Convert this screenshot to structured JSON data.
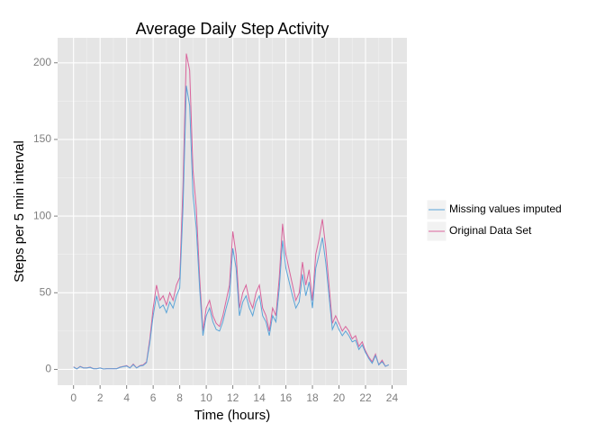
{
  "chart_data": {
    "type": "line",
    "title": "Average Daily Step Activity",
    "x_label": "Time (hours)",
    "y_label": "Steps per 5 min interval",
    "x": [
      0,
      0.25,
      0.5,
      0.75,
      1,
      1.25,
      1.5,
      1.75,
      2,
      2.25,
      2.5,
      2.75,
      3,
      3.25,
      3.5,
      3.75,
      4,
      4.25,
      4.5,
      4.75,
      5,
      5.25,
      5.5,
      5.75,
      6,
      6.25,
      6.5,
      6.75,
      7,
      7.25,
      7.5,
      7.75,
      8,
      8.25,
      8.5,
      8.75,
      9,
      9.25,
      9.5,
      9.75,
      10,
      10.25,
      10.5,
      10.75,
      11,
      11.25,
      11.5,
      11.75,
      12,
      12.25,
      12.5,
      12.75,
      13,
      13.25,
      13.5,
      13.75,
      14,
      14.25,
      14.5,
      14.75,
      15,
      15.25,
      15.5,
      15.75,
      16,
      16.25,
      16.5,
      16.75,
      17,
      17.25,
      17.5,
      17.75,
      18,
      18.25,
      18.5,
      18.75,
      19,
      19.25,
      19.5,
      19.75,
      20,
      20.25,
      20.5,
      20.75,
      21,
      21.25,
      21.5,
      21.75,
      22,
      22.25,
      22.5,
      22.75,
      23,
      23.25,
      23.5,
      23.75
    ],
    "series": [
      {
        "name": "Missing values imputed",
        "color": "#5ba4d8",
        "values": [
          1.5,
          0.3,
          1.8,
          0.9,
          0.9,
          1.3,
          0.4,
          0.4,
          0.9,
          0.3,
          0.4,
          0.4,
          0.4,
          0.4,
          1.3,
          1.8,
          2.2,
          0.9,
          3.1,
          0.9,
          2.2,
          2.6,
          4.4,
          17.6,
          35,
          48,
          40,
          42,
          37,
          44,
          40,
          48,
          53,
          106,
          185,
          172,
          114,
          92,
          53,
          22,
          35,
          40,
          31,
          26,
          25,
          31,
          40,
          48,
          79,
          66,
          35,
          44,
          48,
          40,
          35,
          44,
          48,
          35,
          31,
          22,
          35,
          31,
          53,
          84,
          66,
          57,
          48,
          40,
          44,
          62,
          48,
          57,
          40,
          66,
          75,
          86,
          70,
          48,
          26,
          31,
          26,
          22,
          25,
          22,
          18,
          19,
          13,
          16,
          11,
          7,
          4,
          9,
          3,
          5,
          2,
          3
        ]
      },
      {
        "name": "Original Data Set",
        "color": "#d9649c",
        "values": [
          1.7,
          0.3,
          2,
          1,
          1,
          1.5,
          0.5,
          0.5,
          1,
          0.3,
          0.5,
          0.5,
          0.5,
          0.5,
          1.5,
          2,
          2.5,
          1,
          3.5,
          1,
          2.5,
          3,
          5,
          20,
          40,
          55,
          45,
          48,
          42,
          50,
          45,
          55,
          60,
          120,
          206,
          195,
          130,
          105,
          60,
          25,
          40,
          45,
          35,
          30,
          28,
          35,
          45,
          55,
          90,
          75,
          40,
          50,
          55,
          45,
          40,
          50,
          55,
          40,
          35,
          25,
          40,
          35,
          60,
          95,
          75,
          65,
          55,
          45,
          50,
          70,
          55,
          65,
          45,
          75,
          85,
          98,
          80,
          55,
          30,
          35,
          30,
          25,
          28,
          25,
          20,
          22,
          15,
          18,
          12,
          8,
          5,
          10,
          3,
          6,
          2,
          3
        ]
      }
    ],
    "xlim": [
      -1.2,
      25.12
    ],
    "xticks": [
      0,
      2,
      4,
      6,
      8,
      10,
      12,
      14,
      16,
      18,
      20,
      22,
      24
    ],
    "ylim": [
      -10.3,
      216.3
    ],
    "yticks": [
      0,
      50,
      100,
      150,
      200
    ],
    "grid": true,
    "legend": "right"
  }
}
